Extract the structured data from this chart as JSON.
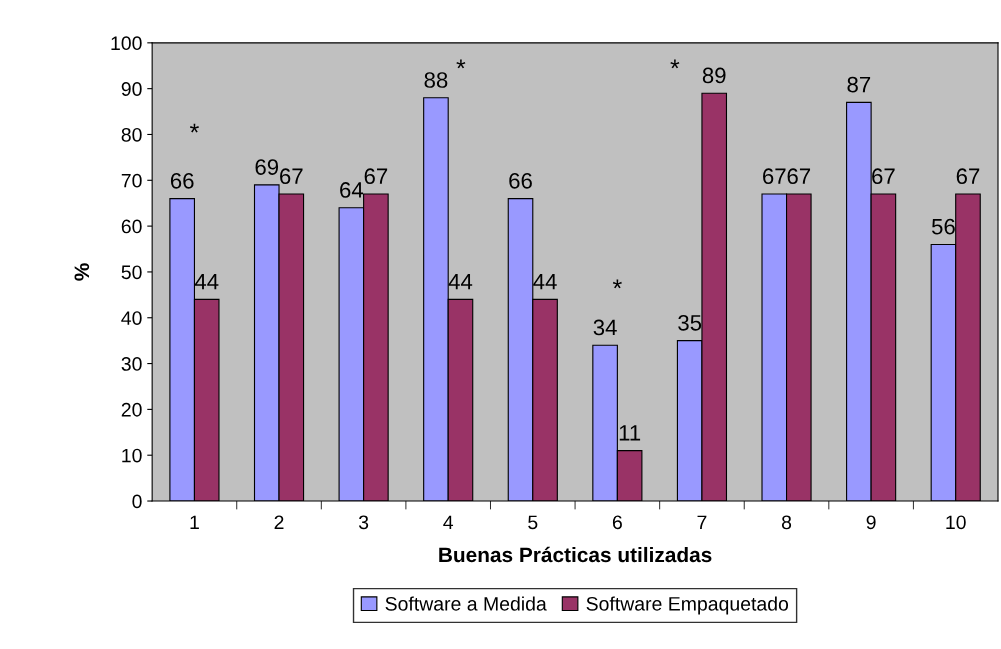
{
  "chart_data": {
    "type": "bar",
    "xlabel": "Buenas Prácticas utilizadas",
    "ylabel": "%",
    "categories": [
      "1",
      "2",
      "3",
      "4",
      "5",
      "6",
      "7",
      "8",
      "9",
      "10"
    ],
    "series": [
      {
        "name": "Software a Medida",
        "color": "#9999ff",
        "values": [
          66,
          69,
          64,
          88,
          66,
          34,
          35,
          67,
          87,
          56
        ]
      },
      {
        "name": "Software Empaquetado",
        "color": "#993366",
        "values": [
          44,
          67,
          67,
          44,
          44,
          11,
          89,
          67,
          67,
          67
        ]
      }
    ],
    "ylim": [
      0,
      100
    ],
    "yticks": [
      0,
      10,
      20,
      30,
      40,
      50,
      60,
      70,
      80,
      90,
      100
    ],
    "data_labels": true,
    "grid": false,
    "legend": "bottom",
    "annotations": [
      "*",
      "*",
      "*",
      "*"
    ]
  }
}
